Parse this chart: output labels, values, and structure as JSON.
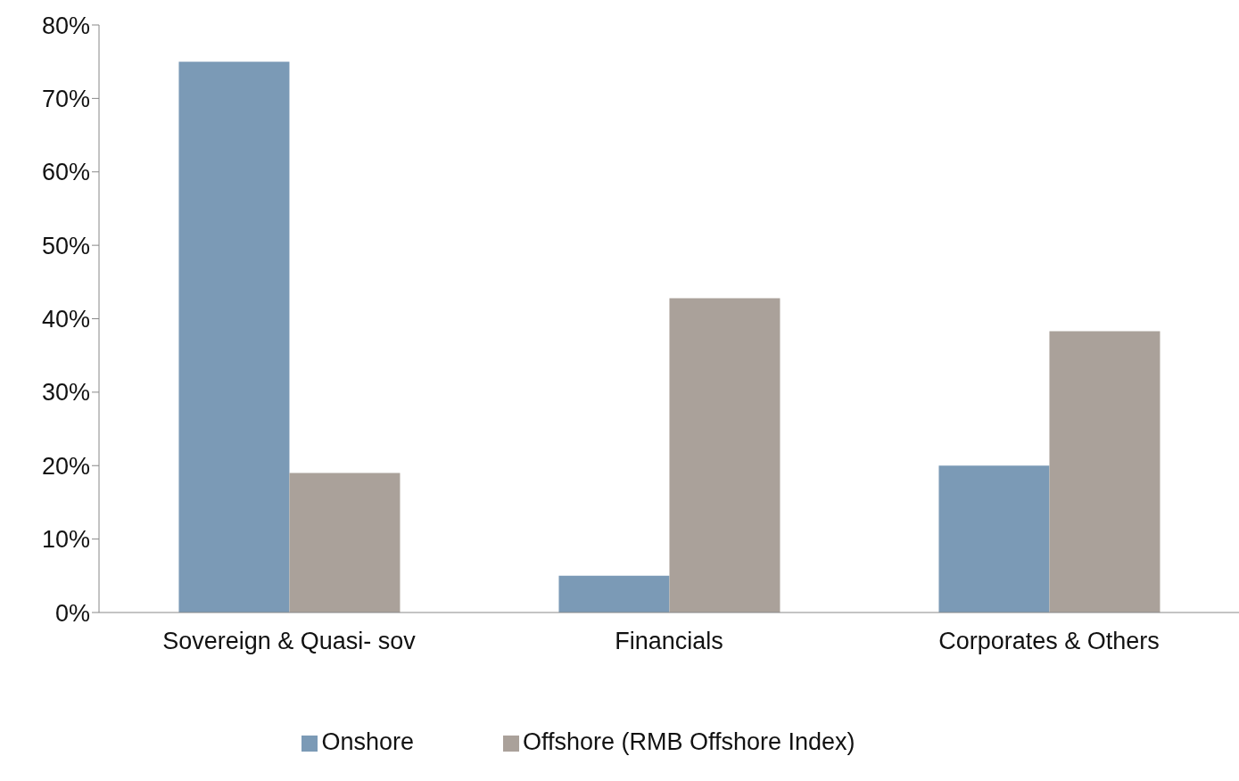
{
  "chart_data": {
    "type": "bar",
    "categories": [
      "Sovereign & Quasi- sov",
      "Financials",
      "Corporates & Others"
    ],
    "series": [
      {
        "name": "Onshore",
        "color": "#7b9ab6",
        "values": [
          75,
          5,
          20
        ]
      },
      {
        "name": "Offshore (RMB Offshore Index)",
        "color": "#aaa19a",
        "values": [
          19,
          42.8,
          38.3
        ]
      }
    ],
    "ylim": [
      0,
      80
    ],
    "yticks": [
      {
        "value": 0,
        "label": "0%"
      },
      {
        "value": 10,
        "label": "10%"
      },
      {
        "value": 20,
        "label": "20%"
      },
      {
        "value": 30,
        "label": "30%"
      },
      {
        "value": 40,
        "label": "40%"
      },
      {
        "value": 50,
        "label": "50%"
      },
      {
        "value": 60,
        "label": "60%"
      },
      {
        "value": 70,
        "label": "70%"
      },
      {
        "value": 80,
        "label": "80%"
      }
    ],
    "grid": false,
    "legend": "bottom"
  }
}
